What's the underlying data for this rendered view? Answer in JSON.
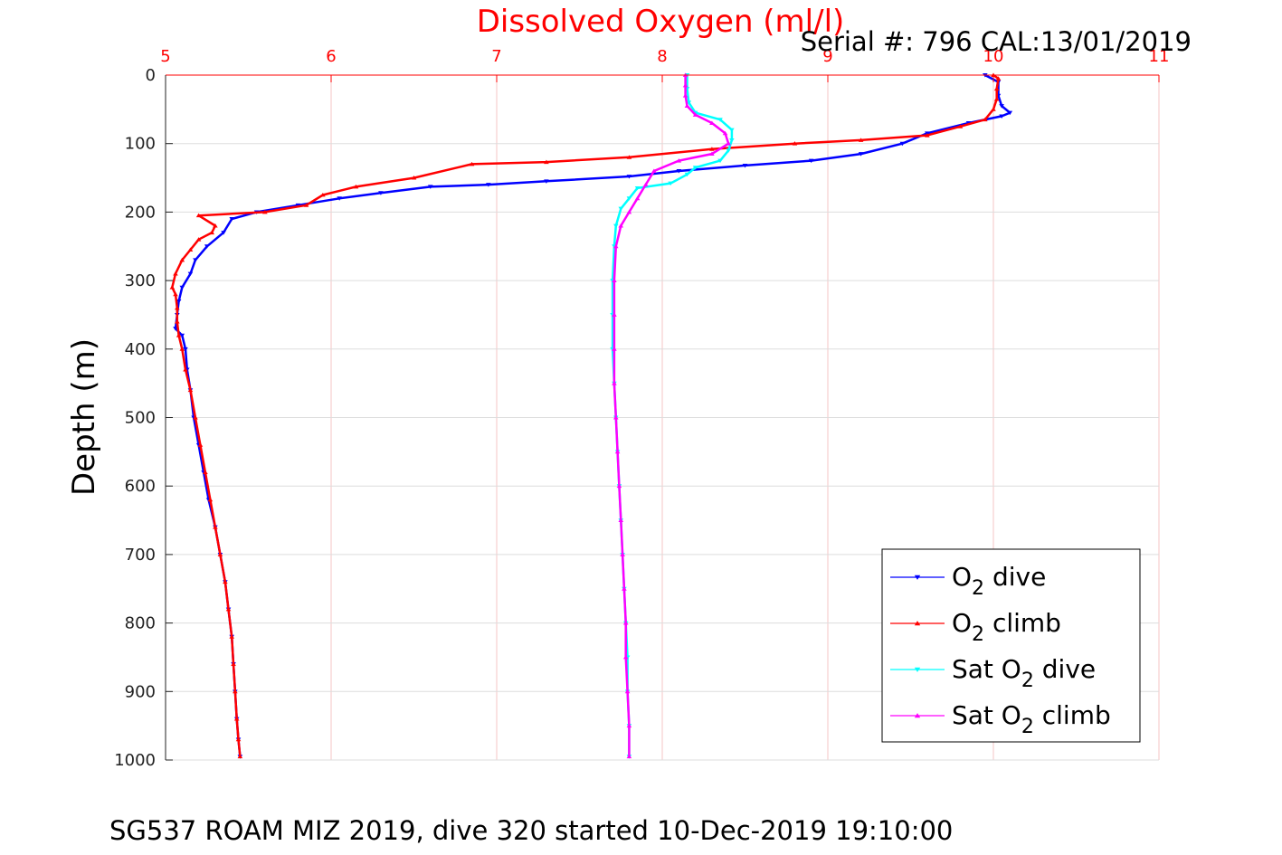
{
  "chart_data": {
    "type": "scatter",
    "title": "Dissolved Oxygen (ml/l)",
    "subtitle": "Serial #: 796  CAL:13/01/2019",
    "caption": "SG537 ROAM MIZ 2019, dive 320 started 10-Dec-2019 19:10:00",
    "xlabel": "",
    "ylabel": "Depth (m)",
    "xlim": [
      5,
      11
    ],
    "ylim": [
      0,
      1000
    ],
    "y_reversed": true,
    "x_axis_position": "top",
    "x_ticks": [
      "5",
      "6",
      "7",
      "8",
      "9",
      "10",
      "11"
    ],
    "y_ticks": [
      "0",
      "100",
      "200",
      "300",
      "400",
      "500",
      "600",
      "700",
      "800",
      "900",
      "1000"
    ],
    "grid": true,
    "legend_position": "bottom-right",
    "colors": {
      "title": "#ff0000",
      "x_axis": "#ff0000",
      "grid_x": "#f4c6c6",
      "grid_y": "#dddddd",
      "o2_dive": "#0000ff",
      "o2_climb": "#ff0000",
      "sat_dive": "#00ffff",
      "sat_climb": "#ff00ff"
    },
    "series": [
      {
        "key": "o2_dive",
        "name": "O2 dive",
        "legend_main": "O",
        "legend_sub": "2",
        "legend_suffix": " dive",
        "color": "#0000ff",
        "marker": "triangle-down",
        "points": [
          [
            9.95,
            0
          ],
          [
            10.03,
            10
          ],
          [
            10.03,
            30
          ],
          [
            10.05,
            45
          ],
          [
            10.1,
            55
          ],
          [
            10.05,
            60
          ],
          [
            9.85,
            70
          ],
          [
            9.6,
            85
          ],
          [
            9.45,
            100
          ],
          [
            9.2,
            115
          ],
          [
            8.9,
            125
          ],
          [
            8.5,
            132
          ],
          [
            8.1,
            140
          ],
          [
            7.8,
            148
          ],
          [
            7.3,
            155
          ],
          [
            6.95,
            160
          ],
          [
            6.6,
            163
          ],
          [
            6.3,
            172
          ],
          [
            6.05,
            180
          ],
          [
            5.8,
            190
          ],
          [
            5.55,
            200
          ],
          [
            5.4,
            210
          ],
          [
            5.35,
            230
          ],
          [
            5.25,
            250
          ],
          [
            5.18,
            270
          ],
          [
            5.15,
            290
          ],
          [
            5.1,
            310
          ],
          [
            5.08,
            330
          ],
          [
            5.07,
            350
          ],
          [
            5.06,
            370
          ],
          [
            5.1,
            380
          ],
          [
            5.12,
            400
          ],
          [
            5.13,
            430
          ],
          [
            5.15,
            460
          ],
          [
            5.17,
            500
          ],
          [
            5.2,
            540
          ],
          [
            5.23,
            580
          ],
          [
            5.26,
            620
          ],
          [
            5.3,
            660
          ],
          [
            5.33,
            700
          ],
          [
            5.36,
            740
          ],
          [
            5.38,
            780
          ],
          [
            5.4,
            820
          ],
          [
            5.41,
            860
          ],
          [
            5.42,
            900
          ],
          [
            5.43,
            940
          ],
          [
            5.44,
            970
          ],
          [
            5.45,
            995
          ]
        ]
      },
      {
        "key": "o2_climb",
        "name": "O2 climb",
        "legend_main": "O",
        "legend_sub": "2",
        "legend_suffix": " climb",
        "color": "#ff0000",
        "marker": "triangle-up",
        "points": [
          [
            5.45,
            995
          ],
          [
            5.44,
            970
          ],
          [
            5.43,
            940
          ],
          [
            5.42,
            900
          ],
          [
            5.41,
            860
          ],
          [
            5.4,
            820
          ],
          [
            5.38,
            780
          ],
          [
            5.36,
            740
          ],
          [
            5.33,
            700
          ],
          [
            5.3,
            660
          ],
          [
            5.27,
            620
          ],
          [
            5.24,
            580
          ],
          [
            5.21,
            540
          ],
          [
            5.18,
            500
          ],
          [
            5.15,
            460
          ],
          [
            5.12,
            430
          ],
          [
            5.1,
            400
          ],
          [
            5.08,
            380
          ],
          [
            5.07,
            360
          ],
          [
            5.07,
            340
          ],
          [
            5.06,
            320
          ],
          [
            5.04,
            310
          ],
          [
            5.06,
            290
          ],
          [
            5.1,
            270
          ],
          [
            5.15,
            255
          ],
          [
            5.2,
            240
          ],
          [
            5.28,
            230
          ],
          [
            5.3,
            220
          ],
          [
            5.2,
            205
          ],
          [
            5.6,
            200
          ],
          [
            5.85,
            190
          ],
          [
            5.95,
            175
          ],
          [
            6.15,
            163
          ],
          [
            6.5,
            150
          ],
          [
            6.85,
            130
          ],
          [
            7.3,
            127
          ],
          [
            7.8,
            120
          ],
          [
            8.3,
            108
          ],
          [
            8.8,
            100
          ],
          [
            9.2,
            95
          ],
          [
            9.6,
            88
          ],
          [
            9.8,
            75
          ],
          [
            9.95,
            65
          ],
          [
            10.0,
            50
          ],
          [
            10.02,
            35
          ],
          [
            10.02,
            20
          ],
          [
            10.03,
            5
          ],
          [
            10.0,
            0
          ]
        ]
      },
      {
        "key": "sat_dive",
        "name": "Sat O2 dive",
        "legend_main": "Sat O",
        "legend_sub": "2",
        "legend_suffix": " dive",
        "color": "#00ffff",
        "marker": "triangle-down",
        "points": [
          [
            8.15,
            0
          ],
          [
            8.15,
            20
          ],
          [
            8.16,
            40
          ],
          [
            8.2,
            55
          ],
          [
            8.35,
            65
          ],
          [
            8.42,
            80
          ],
          [
            8.42,
            95
          ],
          [
            8.4,
            110
          ],
          [
            8.35,
            125
          ],
          [
            8.2,
            135
          ],
          [
            8.15,
            145
          ],
          [
            8.05,
            158
          ],
          [
            7.85,
            165
          ],
          [
            7.8,
            180
          ],
          [
            7.75,
            195
          ],
          [
            7.72,
            220
          ],
          [
            7.71,
            250
          ],
          [
            7.7,
            300
          ],
          [
            7.7,
            350
          ],
          [
            7.7,
            400
          ],
          [
            7.71,
            450
          ],
          [
            7.72,
            500
          ],
          [
            7.73,
            550
          ],
          [
            7.74,
            600
          ],
          [
            7.75,
            650
          ],
          [
            7.76,
            700
          ],
          [
            7.77,
            750
          ],
          [
            7.78,
            800
          ],
          [
            7.79,
            850
          ],
          [
            7.79,
            900
          ],
          [
            7.8,
            950
          ],
          [
            7.8,
            995
          ]
        ]
      },
      {
        "key": "sat_climb",
        "name": "Sat O2 climb",
        "legend_main": "Sat O",
        "legend_sub": "2",
        "legend_suffix": " climb",
        "color": "#ff00ff",
        "marker": "triangle-up",
        "points": [
          [
            7.8,
            995
          ],
          [
            7.8,
            950
          ],
          [
            7.79,
            900
          ],
          [
            7.78,
            850
          ],
          [
            7.78,
            800
          ],
          [
            7.77,
            750
          ],
          [
            7.76,
            700
          ],
          [
            7.75,
            650
          ],
          [
            7.74,
            600
          ],
          [
            7.73,
            550
          ],
          [
            7.72,
            500
          ],
          [
            7.71,
            450
          ],
          [
            7.71,
            400
          ],
          [
            7.71,
            350
          ],
          [
            7.71,
            300
          ],
          [
            7.72,
            250
          ],
          [
            7.75,
            220
          ],
          [
            7.8,
            200
          ],
          [
            7.85,
            180
          ],
          [
            7.9,
            160
          ],
          [
            7.95,
            140
          ],
          [
            8.1,
            125
          ],
          [
            8.3,
            115
          ],
          [
            8.4,
            100
          ],
          [
            8.38,
            85
          ],
          [
            8.3,
            70
          ],
          [
            8.2,
            58
          ],
          [
            8.15,
            45
          ],
          [
            8.14,
            30
          ],
          [
            8.14,
            15
          ],
          [
            8.14,
            0
          ]
        ]
      }
    ]
  }
}
